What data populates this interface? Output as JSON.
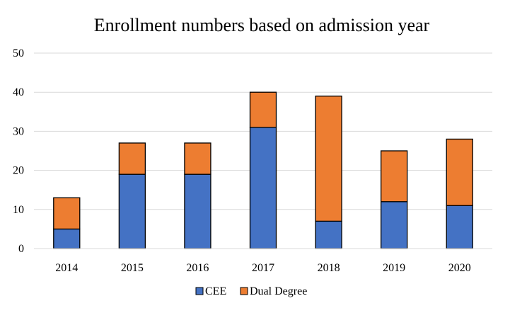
{
  "chart_data": {
    "type": "bar",
    "stacked": true,
    "title": "Enrollment numbers based on admission year",
    "xlabel": "",
    "ylabel": "",
    "categories": [
      "2014",
      "2015",
      "2016",
      "2017",
      "2018",
      "2019",
      "2020"
    ],
    "series": [
      {
        "name": "CEE",
        "values": [
          5,
          19,
          19,
          31,
          7,
          12,
          11
        ],
        "color": "#4472C4"
      },
      {
        "name": "Dual Degree",
        "values": [
          8,
          8,
          8,
          9,
          32,
          13,
          17
        ],
        "color": "#ED7D31"
      }
    ],
    "ylim": [
      0,
      50
    ],
    "yticks": [
      0,
      10,
      20,
      30,
      40,
      50
    ],
    "grid": true,
    "legend": "bottom"
  }
}
